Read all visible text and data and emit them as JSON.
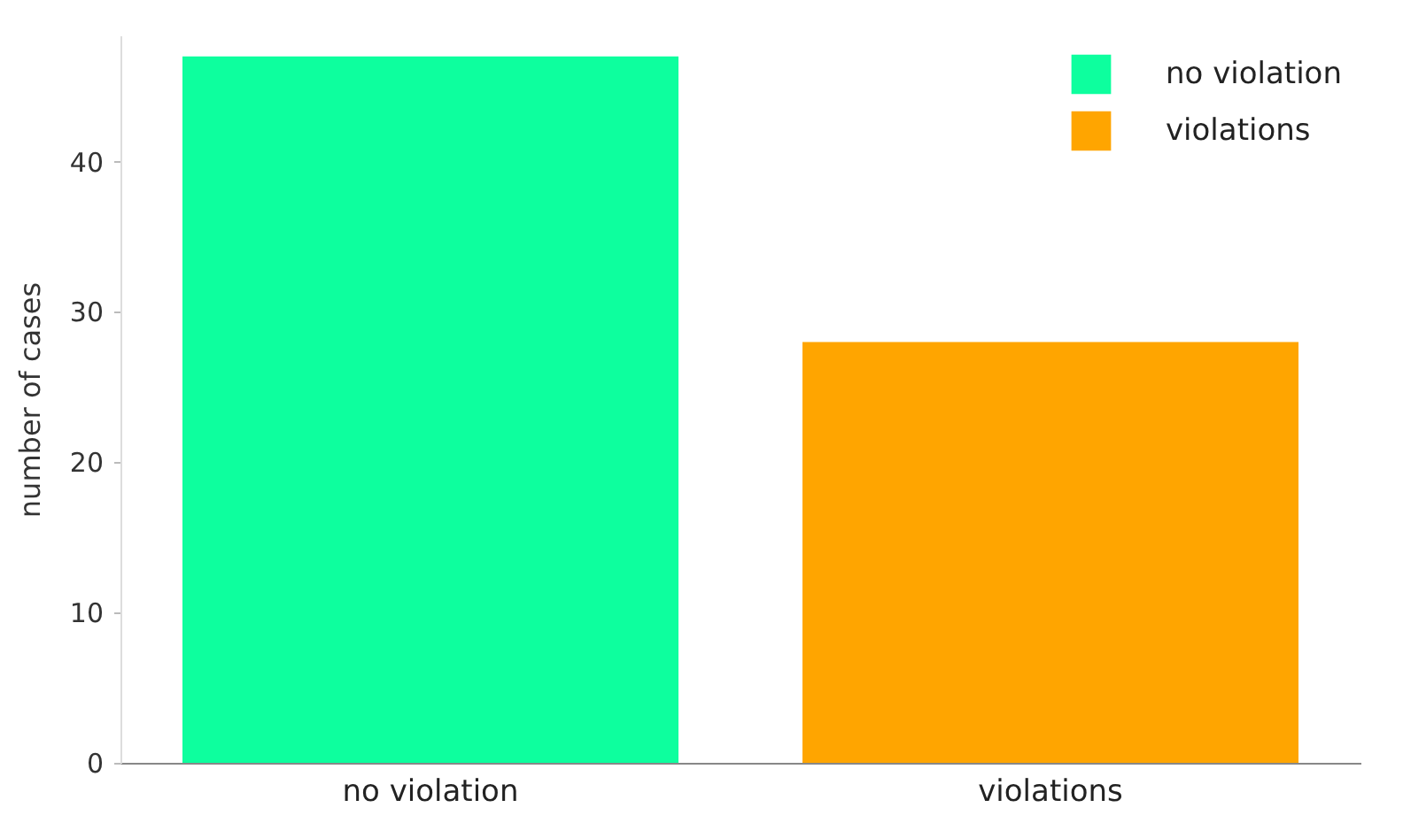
{
  "chart_data": {
    "type": "bar",
    "ylabel": "number of cases",
    "categories": [
      "no violation",
      "violations"
    ],
    "series": [
      {
        "name": "no violation",
        "color": "#0dff9e",
        "values": [
          47,
          null
        ]
      },
      {
        "name": "violations",
        "color": "#ffa500",
        "values": [
          null,
          28
        ]
      }
    ],
    "ylim": [
      0,
      48.4
    ],
    "yticks": [
      0,
      10,
      20,
      30,
      40
    ],
    "grid": false,
    "legend": "top right"
  }
}
